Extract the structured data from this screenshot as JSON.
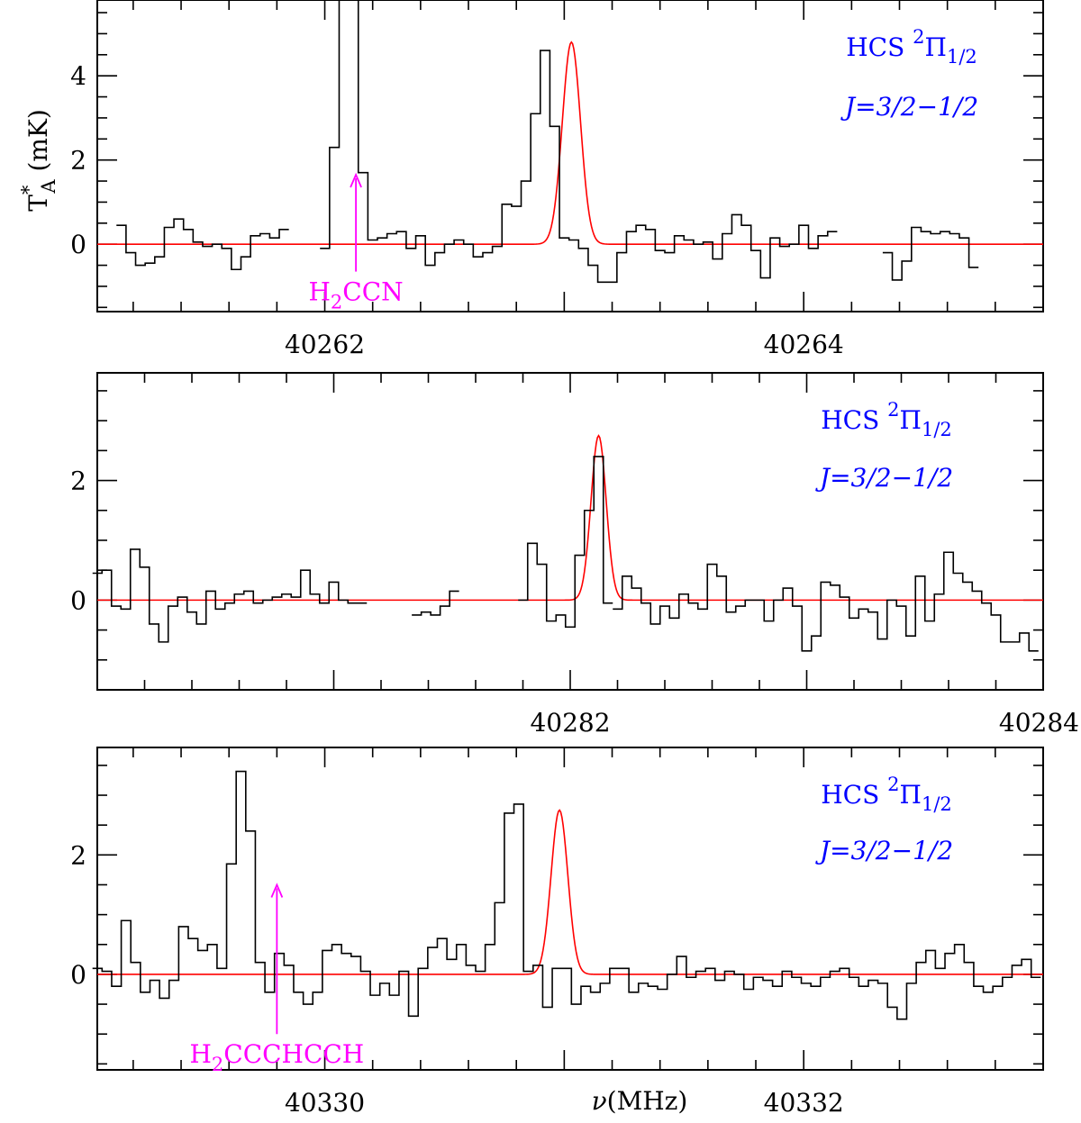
{
  "figure": {
    "ylabel": {
      "main": "T",
      "sup": "*",
      "sub": "A",
      "unit": " (mK)"
    },
    "xlabel": {
      "main": "ν",
      "unit": "(MHz)"
    }
  },
  "colors": {
    "data": "#000000",
    "fit": "#ff0000",
    "label": "#0000ff",
    "annotation": "#ff00ff"
  },
  "chart_data": [
    {
      "type": "line",
      "style": "step",
      "xlim": [
        40261.05,
        40265.0
      ],
      "ylim": [
        -1.6,
        5.8
      ],
      "x_major_ticks": [
        40262,
        40264
      ],
      "y_major_ticks": [
        0,
        2,
        4
      ],
      "label_line1": {
        "main": "HCS ",
        "sup": "2",
        "rest": "Π",
        "sub": "1/2"
      },
      "label_line2": "J=3/2−1/2",
      "annotation": {
        "text_main": "H",
        "text_sub": "2",
        "text_rest": "CCN",
        "x": 40262.13,
        "arrow_from": -0.65,
        "arrow_to": 1.65
      },
      "fit": {
        "center": 40263.03,
        "amplitude": 4.8,
        "sigma": 0.038
      },
      "series": [
        {
          "x": [
            40261.15,
            40261.19,
            40261.23,
            40261.27,
            40261.31,
            40261.35,
            40261.39,
            40261.43,
            40261.47,
            40261.51,
            40261.55,
            40261.59,
            40261.63,
            40261.67,
            40261.71,
            40261.75,
            40261.79,
            40261.83
          ],
          "y": [
            0.45,
            -0.2,
            -0.5,
            -0.45,
            -0.3,
            0.4,
            0.6,
            0.35,
            0.05,
            -0.05,
            0.0,
            -0.1,
            -0.6,
            -0.3,
            0.2,
            0.25,
            0.15,
            0.35
          ]
        },
        {
          "x": [
            40262.0,
            40262.04,
            40262.08,
            40262.12,
            40262.16,
            40262.2,
            40262.24,
            40262.28,
            40262.32,
            40262.36,
            40262.4,
            40262.44,
            40262.48,
            40262.52,
            40262.56,
            40262.6,
            40262.64,
            40262.68,
            40262.72,
            40262.76,
            40262.8,
            40262.84,
            40262.88,
            40262.92,
            40262.96,
            40263.0,
            40263.04,
            40263.08,
            40263.12,
            40263.16,
            40263.2,
            40263.24,
            40263.28,
            40263.32,
            40263.36,
            40263.4,
            40263.44,
            40263.48,
            40263.52,
            40263.56,
            40263.6,
            40263.64,
            40263.68,
            40263.72,
            40263.76,
            40263.8,
            40263.84,
            40263.88,
            40263.92,
            40263.96,
            40264.0,
            40264.04,
            40264.08,
            40264.12
          ],
          "y": [
            -0.1,
            2.3,
            5.8,
            5.8,
            1.7,
            0.1,
            0.15,
            0.25,
            0.3,
            -0.1,
            0.2,
            -0.5,
            -0.2,
            0.0,
            0.1,
            0.0,
            -0.3,
            -0.2,
            -0.05,
            0.95,
            0.9,
            1.5,
            3.1,
            4.6,
            2.8,
            0.15,
            0.1,
            -0.1,
            -0.5,
            -0.9,
            -0.9,
            -0.2,
            0.3,
            0.45,
            0.35,
            -0.15,
            -0.2,
            0.2,
            0.1,
            0.0,
            0.05,
            -0.35,
            0.25,
            0.7,
            0.45,
            -0.15,
            -0.8,
            0.15,
            -0.05,
            0.0,
            0.45,
            -0.1,
            0.2,
            0.3
          ]
        },
        {
          "x": [
            40264.35,
            40264.39,
            40264.43,
            40264.47,
            40264.51,
            40264.55,
            40264.59,
            40264.63,
            40264.67,
            40264.71
          ],
          "y": [
            -0.2,
            -0.85,
            -0.4,
            0.4,
            0.3,
            0.25,
            0.3,
            0.25,
            0.15,
            -0.55
          ]
        }
      ]
    },
    {
      "type": "line",
      "style": "step",
      "xlim": [
        40280.0,
        40284.0
      ],
      "ylim": [
        -1.5,
        3.8
      ],
      "x_major_ticks": [
        40282,
        40284
      ],
      "y_major_ticks": [
        0,
        2
      ],
      "label_line1": {
        "main": "HCS ",
        "sup": "2",
        "rest": "Π",
        "sub": "1/2"
      },
      "label_line2": "J=3/2−1/2",
      "fit": {
        "center": 40282.12,
        "amplitude": 2.75,
        "sigma": 0.032
      },
      "series": [
        {
          "x": [
            40280.0,
            40280.04,
            40280.08,
            40280.12,
            40280.16,
            40280.2,
            40280.24,
            40280.28,
            40280.32,
            40280.36,
            40280.4,
            40280.44,
            40280.48,
            40280.52,
            40280.56,
            40280.6,
            40280.64,
            40280.68,
            40280.72,
            40280.76,
            40280.8,
            40280.84,
            40280.88,
            40280.92,
            40280.96,
            40281.0,
            40281.04,
            40281.08,
            40281.12
          ],
          "y": [
            0.45,
            0.5,
            -0.1,
            -0.15,
            0.85,
            0.55,
            -0.4,
            -0.7,
            -0.1,
            0.05,
            -0.2,
            -0.4,
            0.15,
            -0.15,
            -0.05,
            0.1,
            0.15,
            -0.05,
            0.0,
            0.05,
            0.1,
            0.05,
            0.5,
            0.1,
            -0.05,
            0.3,
            0.0,
            -0.05,
            -0.05
          ]
        },
        {
          "x": [
            40281.35,
            40281.39,
            40281.43,
            40281.47,
            40281.51
          ],
          "y": [
            -0.25,
            -0.2,
            -0.25,
            -0.1,
            0.15
          ]
        },
        {
          "x": [
            40281.8,
            40281.84,
            40281.88,
            40281.92,
            40281.96,
            40282.0,
            40282.04,
            40282.08,
            40282.12,
            40282.16
          ],
          "y": [
            0.0,
            0.95,
            0.6,
            -0.35,
            -0.25,
            -0.45,
            0.75,
            1.5,
            2.4,
            -0.05
          ]
        },
        {
          "x": [
            40282.2,
            40282.24,
            40282.28,
            40282.32,
            40282.36,
            40282.4,
            40282.44,
            40282.48,
            40282.52,
            40282.56,
            40282.6,
            40282.64,
            40282.68,
            40282.72,
            40282.76,
            40282.8,
            40282.84,
            40282.88,
            40282.92,
            40282.96,
            40283.0,
            40283.04,
            40283.08,
            40283.12,
            40283.16,
            40283.2,
            40283.24,
            40283.28,
            40283.32,
            40283.36,
            40283.4,
            40283.44,
            40283.48,
            40283.52,
            40283.56,
            40283.6,
            40283.64,
            40283.68,
            40283.72,
            40283.76,
            40283.8,
            40283.84,
            40283.88,
            40283.92,
            40283.96
          ],
          "y": [
            -0.15,
            0.4,
            0.2,
            -0.05,
            -0.4,
            -0.1,
            -0.3,
            0.1,
            -0.05,
            -0.15,
            0.6,
            0.4,
            -0.2,
            -0.1,
            0.0,
            0.0,
            -0.35,
            0.0,
            0.2,
            -0.1,
            -0.85,
            -0.6,
            0.3,
            0.25,
            0.05,
            -0.3,
            -0.15,
            -0.2,
            -0.65,
            0.0,
            -0.1,
            -0.6,
            0.4,
            -0.35,
            0.1,
            0.8,
            0.45,
            0.3,
            0.15,
            -0.05,
            -0.25,
            -0.7,
            -0.7,
            -0.55,
            -0.85
          ]
        }
      ]
    },
    {
      "type": "line",
      "style": "step",
      "xlim": [
        40329.05,
        40333.0
      ],
      "ylim": [
        -1.6,
        3.8
      ],
      "x_major_ticks": [
        40330,
        40332
      ],
      "y_major_ticks": [
        0,
        2
      ],
      "label_line1": {
        "main": "HCS ",
        "sup": "2",
        "rest": "Π",
        "sub": "1/2"
      },
      "label_line2": "J=3/2−1/2",
      "annotation": {
        "text_main": "H",
        "text_sub": "2",
        "text_rest": "CCCHCCH",
        "x": 40329.8,
        "arrow_from": -1.0,
        "arrow_to": 1.5
      },
      "fit": {
        "center": 40330.98,
        "amplitude": 2.75,
        "sigma": 0.035
      },
      "series": [
        {
          "x": [
            40329.05,
            40329.09,
            40329.13,
            40329.17,
            40329.21,
            40329.25,
            40329.29,
            40329.33,
            40329.37,
            40329.41,
            40329.45,
            40329.49,
            40329.53,
            40329.57,
            40329.61,
            40329.65,
            40329.69,
            40329.73,
            40329.77,
            40329.81,
            40329.85,
            40329.89,
            40329.93,
            40329.97,
            40330.01,
            40330.05,
            40330.09,
            40330.13,
            40330.17,
            40330.21,
            40330.25,
            40330.29,
            40330.33,
            40330.37,
            40330.41,
            40330.45,
            40330.49,
            40330.53,
            40330.57,
            40330.61,
            40330.65,
            40330.69,
            40330.73,
            40330.77,
            40330.81,
            40330.85,
            40330.89,
            40330.93,
            40330.97,
            40331.01,
            40331.05,
            40331.09,
            40331.13,
            40331.17,
            40331.21,
            40331.25,
            40331.29,
            40331.33,
            40331.37,
            40331.41,
            40331.45,
            40331.49,
            40331.53,
            40331.57,
            40331.61,
            40331.65,
            40331.69,
            40331.73,
            40331.77,
            40331.81,
            40331.85,
            40331.89,
            40331.93,
            40331.97,
            40332.01,
            40332.05,
            40332.09,
            40332.13,
            40332.17,
            40332.21,
            40332.25,
            40332.29,
            40332.33,
            40332.37,
            40332.41,
            40332.45,
            40332.49,
            40332.53,
            40332.57,
            40332.61,
            40332.65,
            40332.69,
            40332.73,
            40332.77,
            40332.81,
            40332.85,
            40332.89,
            40332.93,
            40332.97
          ],
          "y": [
            0.1,
            0.05,
            -0.2,
            0.9,
            0.2,
            -0.3,
            -0.1,
            -0.4,
            -0.1,
            0.8,
            0.6,
            0.4,
            0.5,
            0.1,
            1.85,
            3.4,
            2.4,
            0.2,
            -0.3,
            0.35,
            0.15,
            -0.3,
            -0.5,
            -0.3,
            0.4,
            0.5,
            0.35,
            0.3,
            0.05,
            -0.35,
            -0.15,
            -0.35,
            0.05,
            -0.7,
            0.1,
            0.45,
            0.6,
            0.25,
            0.5,
            0.15,
            0.05,
            0.5,
            1.2,
            2.7,
            2.85,
            0.05,
            0.15,
            -0.55,
            0.1,
            0.1,
            -0.5,
            -0.2,
            -0.3,
            -0.15,
            0.1,
            0.1,
            -0.3,
            -0.15,
            -0.2,
            -0.25,
            0.0,
            0.3,
            -0.05,
            0.05,
            0.1,
            -0.1,
            0.05,
            0.0,
            -0.25,
            -0.05,
            -0.1,
            -0.2,
            0.05,
            -0.05,
            -0.15,
            -0.2,
            -0.05,
            0.05,
            0.1,
            -0.05,
            -0.2,
            -0.1,
            -0.15,
            -0.55,
            -0.75,
            -0.15,
            0.2,
            0.4,
            0.1,
            0.35,
            0.5,
            0.2,
            -0.2,
            -0.3,
            -0.2,
            -0.05,
            0.15,
            0.25,
            -0.05
          ]
        }
      ]
    }
  ]
}
